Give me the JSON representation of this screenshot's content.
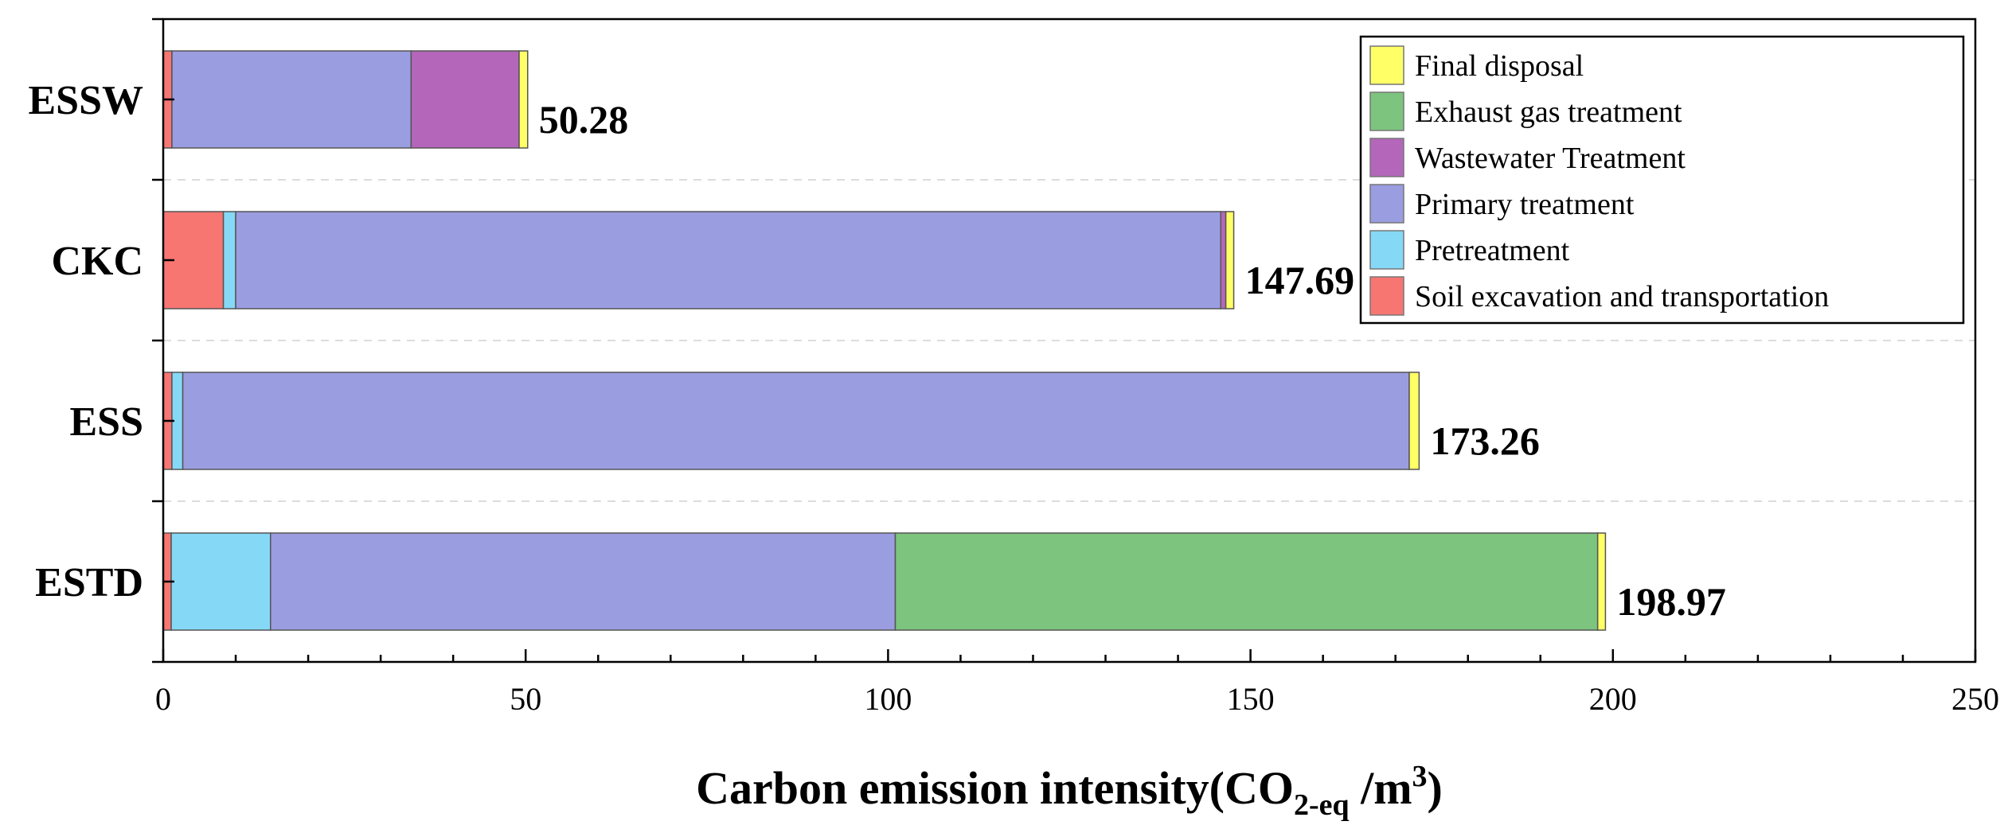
{
  "chart_data": {
    "type": "bar",
    "orientation": "horizontal",
    "stacked": true,
    "categories": [
      "ESTD",
      "ESS",
      "CKC",
      "ESSW"
    ],
    "series": [
      {
        "name": "Soil excavation and transportation",
        "color": "#F77672",
        "values": [
          1.1,
          1.2,
          8.3,
          1.2
        ]
      },
      {
        "name": "Pretreatment",
        "color": "#86D8F7",
        "values": [
          13.7,
          1.5,
          1.7,
          0
        ]
      },
      {
        "name": "Primary treatment",
        "color": "#9A9DE0",
        "values": [
          86.2,
          169.2,
          135.9,
          33.0
        ]
      },
      {
        "name": "Wastewater Treatment",
        "color": "#B467BA",
        "values": [
          0,
          0,
          0.7,
          14.9
        ]
      },
      {
        "name": "Exhaust gas treatment",
        "color": "#7DC47F",
        "values": [
          96.9,
          0,
          0,
          0
        ]
      },
      {
        "name": "Final disposal",
        "color": "#FFFF66",
        "values": [
          1.07,
          1.36,
          1.09,
          1.18
        ]
      }
    ],
    "totals": [
      "198.97",
      "173.26",
      "147.69",
      "50.28"
    ],
    "xlim": [
      0,
      250
    ],
    "xticks": [
      "0",
      "50",
      "100",
      "150",
      "200",
      "250"
    ],
    "xlabel": {
      "main": "Carbon emission intensity(CO",
      "sub": "2-eq",
      "mid": " /m",
      "sup": "3",
      "end": ")"
    },
    "legend_position": "top-right",
    "legend_order": [
      "Final disposal",
      "Exhaust gas treatment",
      "Wastewater Treatment",
      "Primary treatment",
      "Pretreatment",
      "Soil excavation and transportation"
    ],
    "grid": "horizontal dashed"
  }
}
